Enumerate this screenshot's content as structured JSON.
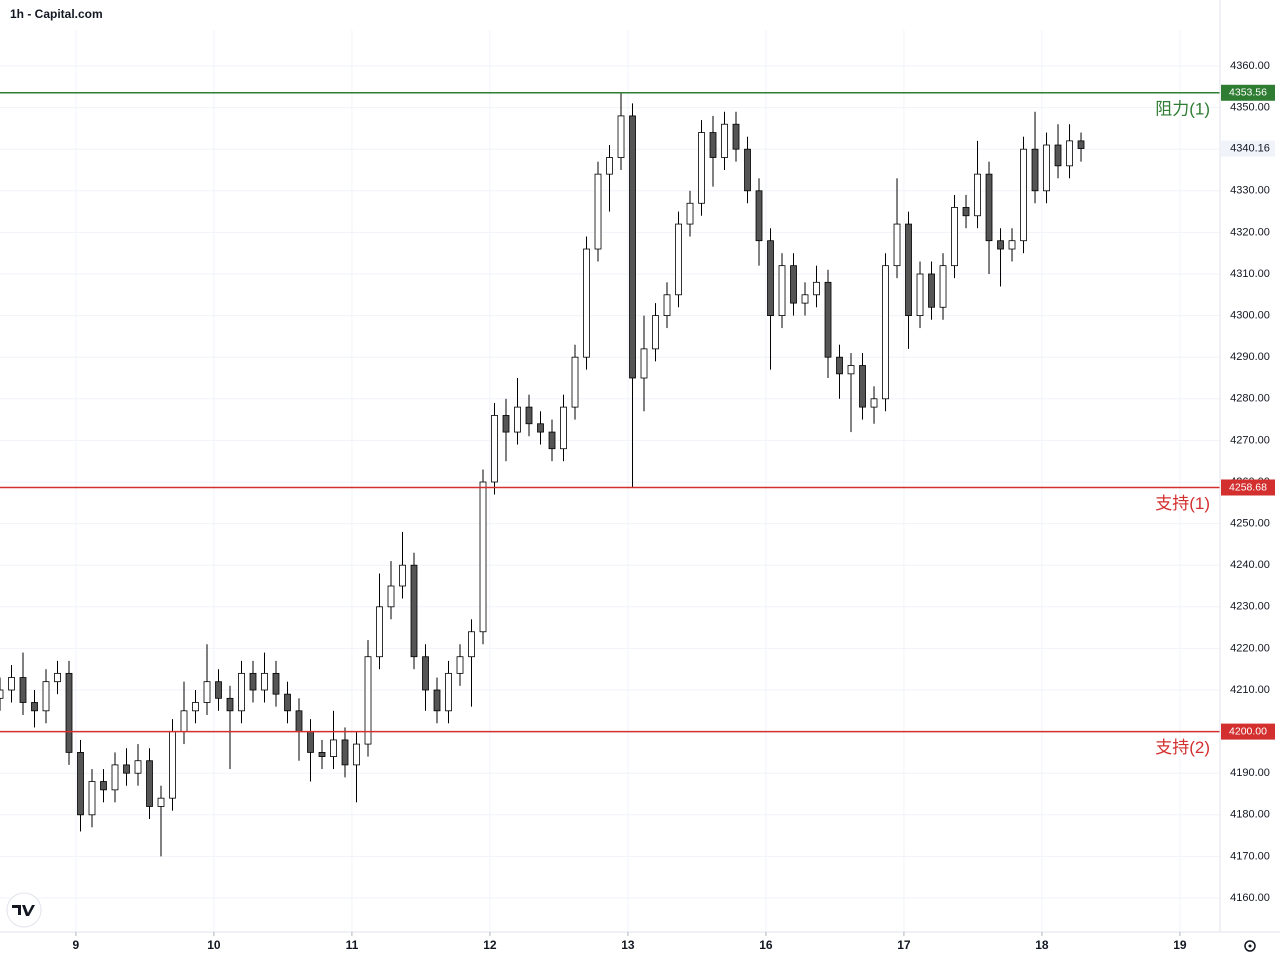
{
  "chart_data": {
    "type": "candlestick",
    "title": "1h - Capital.com",
    "x": [
      0,
      2,
      4,
      6,
      8,
      10,
      12,
      14,
      16,
      18,
      20,
      22,
      24,
      26,
      28,
      30,
      32,
      34,
      36,
      38,
      40,
      42,
      44,
      46,
      48,
      50,
      52,
      54,
      56,
      58,
      60,
      62,
      64,
      66,
      68,
      70,
      72,
      74,
      76,
      78,
      80,
      82,
      84,
      86,
      88,
      90,
      92,
      94,
      96,
      98,
      100,
      102,
      104,
      106,
      108,
      110,
      112,
      114,
      116,
      118,
      120,
      122,
      124,
      126,
      128,
      130,
      132,
      134,
      136,
      138,
      140,
      142,
      144,
      146,
      148,
      150,
      152,
      154,
      156,
      158,
      160,
      162,
      164,
      166,
      168,
      170,
      172,
      174,
      176,
      178,
      180,
      182,
      184,
      186,
      188
    ],
    "open": [
      4208,
      4210,
      4213,
      4207,
      4205,
      4212,
      4214,
      4195,
      4180,
      4188,
      4186,
      4192,
      4190,
      4193,
      4182,
      4184,
      4200,
      4205,
      4207,
      4212,
      4208,
      4205,
      4214,
      4210,
      4214,
      4209,
      4205,
      4200,
      4195,
      4194,
      4198,
      4192,
      4197,
      4218,
      4230,
      4235,
      4240,
      4218,
      4210,
      4205,
      4214,
      4218,
      4224,
      4260,
      4276,
      4272,
      4278,
      4274,
      4272,
      4268,
      4278,
      4290,
      4316,
      4334,
      4338,
      4348,
      4285,
      4292,
      4300,
      4305,
      4322,
      4327,
      4344,
      4338,
      4346,
      4340,
      4330,
      4318,
      4300,
      4312,
      4303,
      4305,
      4308,
      4290,
      4286,
      4288,
      4278,
      4280,
      4312,
      4322,
      4300,
      4310,
      4302,
      4312,
      4326,
      4324,
      4334,
      4318,
      4316,
      4318,
      4340,
      4330,
      4341,
      4336,
      4342
    ],
    "high": [
      4213,
      4216,
      4219,
      4210,
      4215,
      4217,
      4217,
      4198,
      4191,
      4191,
      4195,
      4196,
      4197,
      4196,
      4187,
      4203,
      4212,
      4210,
      4221,
      4215,
      4211,
      4217,
      4217,
      4219,
      4217,
      4212,
      4208,
      4203,
      4198,
      4205,
      4201,
      4200,
      4222,
      4238,
      4241,
      4248,
      4243,
      4221,
      4213,
      4217,
      4221,
      4227,
      4263,
      4279,
      4280,
      4285,
      4281,
      4277,
      4275,
      4281,
      4293,
      4319,
      4337,
      4341,
      4353.5,
      4351,
      4300,
      4303,
      4308,
      4325,
      4330,
      4347,
      4348,
      4349,
      4349,
      4343,
      4333,
      4321,
      4315,
      4315,
      4308,
      4312,
      4311,
      4293,
      4291,
      4291,
      4283,
      4315,
      4333,
      4325,
      4313,
      4313,
      4315,
      4329,
      4329,
      4342,
      4337,
      4321,
      4321,
      4343,
      4349,
      4344,
      4346,
      4346,
      4344
    ],
    "low": [
      4205,
      4207,
      4204,
      4201,
      4202,
      4209,
      4192,
      4176,
      4177,
      4183,
      4183,
      4187,
      4187,
      4179,
      4170,
      4181,
      4197,
      4202,
      4204,
      4205,
      4191,
      4202,
      4207,
      4207,
      4206,
      4202,
      4193,
      4188,
      4191,
      4191,
      4189,
      4183,
      4194,
      4215,
      4227,
      4232,
      4215,
      4205,
      4202,
      4202,
      4211,
      4206,
      4221,
      4257,
      4265,
      4269,
      4271,
      4269,
      4265,
      4265,
      4275,
      4287,
      4313,
      4325,
      4335,
      4258.7,
      4277,
      4289,
      4297,
      4302,
      4319,
      4324,
      4331,
      4335,
      4337,
      4327,
      4312,
      4287,
      4297,
      4300,
      4300,
      4302,
      4285,
      4280,
      4272,
      4275,
      4274,
      4277,
      4309,
      4292,
      4297,
      4299,
      4299,
      4309,
      4321,
      4321,
      4310,
      4307,
      4313,
      4315,
      4327,
      4327,
      4333,
      4333,
      4337
    ],
    "close": [
      4210,
      4213,
      4207,
      4205,
      4212,
      4214,
      4195,
      4180,
      4188,
      4186,
      4192,
      4190,
      4193,
      4182,
      4184,
      4200,
      4205,
      4207,
      4212,
      4208,
      4205,
      4214,
      4210,
      4214,
      4209,
      4205,
      4200,
      4195,
      4194,
      4198,
      4192,
      4197,
      4218,
      4230,
      4235,
      4240,
      4218,
      4210,
      4205,
      4214,
      4218,
      4224,
      4260,
      4276,
      4272,
      4278,
      4274,
      4272,
      4268,
      4278,
      4290,
      4316,
      4334,
      4338,
      4348,
      4285,
      4292,
      4300,
      4305,
      4322,
      4327,
      4344,
      4338,
      4346,
      4340,
      4330,
      4318,
      4300,
      4312,
      4303,
      4305,
      4308,
      4290,
      4286,
      4288,
      4278,
      4280,
      4312,
      4322,
      4300,
      4310,
      4302,
      4312,
      4326,
      4324,
      4334,
      4318,
      4316,
      4318,
      4340,
      4330,
      4341,
      4336,
      4342,
      4340.16
    ],
    "up_color": "#ffffff",
    "down_color": "#555555",
    "wick_color": "#000000",
    "xlim": [
      0,
      212.17
    ],
    "xticks": [
      {
        "value": 13.2,
        "label": "9"
      },
      {
        "value": 37.2,
        "label": "10"
      },
      {
        "value": 61.2,
        "label": "11"
      },
      {
        "value": 85.2,
        "label": "12"
      },
      {
        "value": 109.2,
        "label": "13"
      },
      {
        "value": 133.2,
        "label": "16"
      },
      {
        "value": 157.2,
        "label": "17"
      },
      {
        "value": 181.2,
        "label": "18"
      },
      {
        "value": 205.2,
        "label": "19"
      }
    ],
    "ylim": [
      4151.83,
      4368.65
    ],
    "yticks": [
      {
        "value": 4160,
        "label": "4160.00"
      },
      {
        "value": 4170,
        "label": "4170.00"
      },
      {
        "value": 4180,
        "label": "4180.00"
      },
      {
        "value": 4190,
        "label": "4190.00"
      },
      {
        "value": 4200,
        "label": "4200.00"
      },
      {
        "value": 4210,
        "label": "4210.00"
      },
      {
        "value": 4220,
        "label": "4220.00"
      },
      {
        "value": 4230,
        "label": "4230.00"
      },
      {
        "value": 4240,
        "label": "4240.00"
      },
      {
        "value": 4250,
        "label": "4250.00"
      },
      {
        "value": 4260,
        "label": "4260.00"
      },
      {
        "value": 4270,
        "label": "4270.00"
      },
      {
        "value": 4280,
        "label": "4280.00"
      },
      {
        "value": 4290,
        "label": "4290.00"
      },
      {
        "value": 4300,
        "label": "4300.00"
      },
      {
        "value": 4310,
        "label": "4310.00"
      },
      {
        "value": 4320,
        "label": "4320.00"
      },
      {
        "value": 4330,
        "label": "4330.00"
      },
      {
        "value": 4340,
        "label": "4340.00"
      },
      {
        "value": 4350,
        "label": "4350.00"
      },
      {
        "value": 4360,
        "label": "4360.00"
      }
    ],
    "grid": true,
    "levels": [
      {
        "value": 4353.56,
        "label": "4353.56",
        "name": "阻力(1)",
        "color": "#2e7d32"
      },
      {
        "value": 4258.68,
        "label": "4258.68",
        "name": "支持(1)",
        "color": "#d32f2f"
      },
      {
        "value": 4200,
        "label": "4200.00",
        "name": "支持(2)",
        "color": "#d32f2f"
      }
    ],
    "last_price": {
      "value": 4340.16,
      "label": "4340.16"
    }
  }
}
